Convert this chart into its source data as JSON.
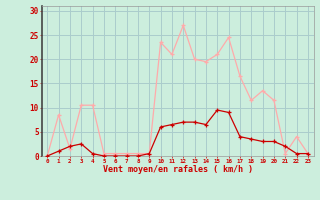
{
  "hours": [
    0,
    1,
    2,
    3,
    4,
    5,
    6,
    7,
    8,
    9,
    10,
    11,
    12,
    13,
    14,
    15,
    16,
    17,
    18,
    19,
    20,
    21,
    22,
    23
  ],
  "wind_mean": [
    0,
    1,
    2,
    2.5,
    0.5,
    0,
    0,
    0,
    0,
    0.5,
    6,
    6.5,
    7,
    7,
    6.5,
    9.5,
    9,
    4,
    3.5,
    3,
    3,
    2,
    0.5,
    0.5
  ],
  "wind_gust": [
    0,
    8.5,
    1.5,
    10.5,
    10.5,
    0.5,
    0.5,
    0.5,
    0.5,
    0.5,
    23.5,
    21,
    27,
    20,
    19.5,
    21,
    24.5,
    16.5,
    11.5,
    13.5,
    11.5,
    0.5,
    4,
    0.5
  ],
  "wind_mean_color": "#cc0000",
  "wind_gust_color": "#ffaaaa",
  "background_color": "#cceedd",
  "grid_color": "#aacccc",
  "xlabel": "Vent moyen/en rafales ( km/h )",
  "xlabel_color": "#cc0000",
  "yticks": [
    0,
    5,
    10,
    15,
    20,
    25,
    30
  ],
  "ylim": [
    0,
    31
  ],
  "xlim": [
    -0.5,
    23.5
  ]
}
